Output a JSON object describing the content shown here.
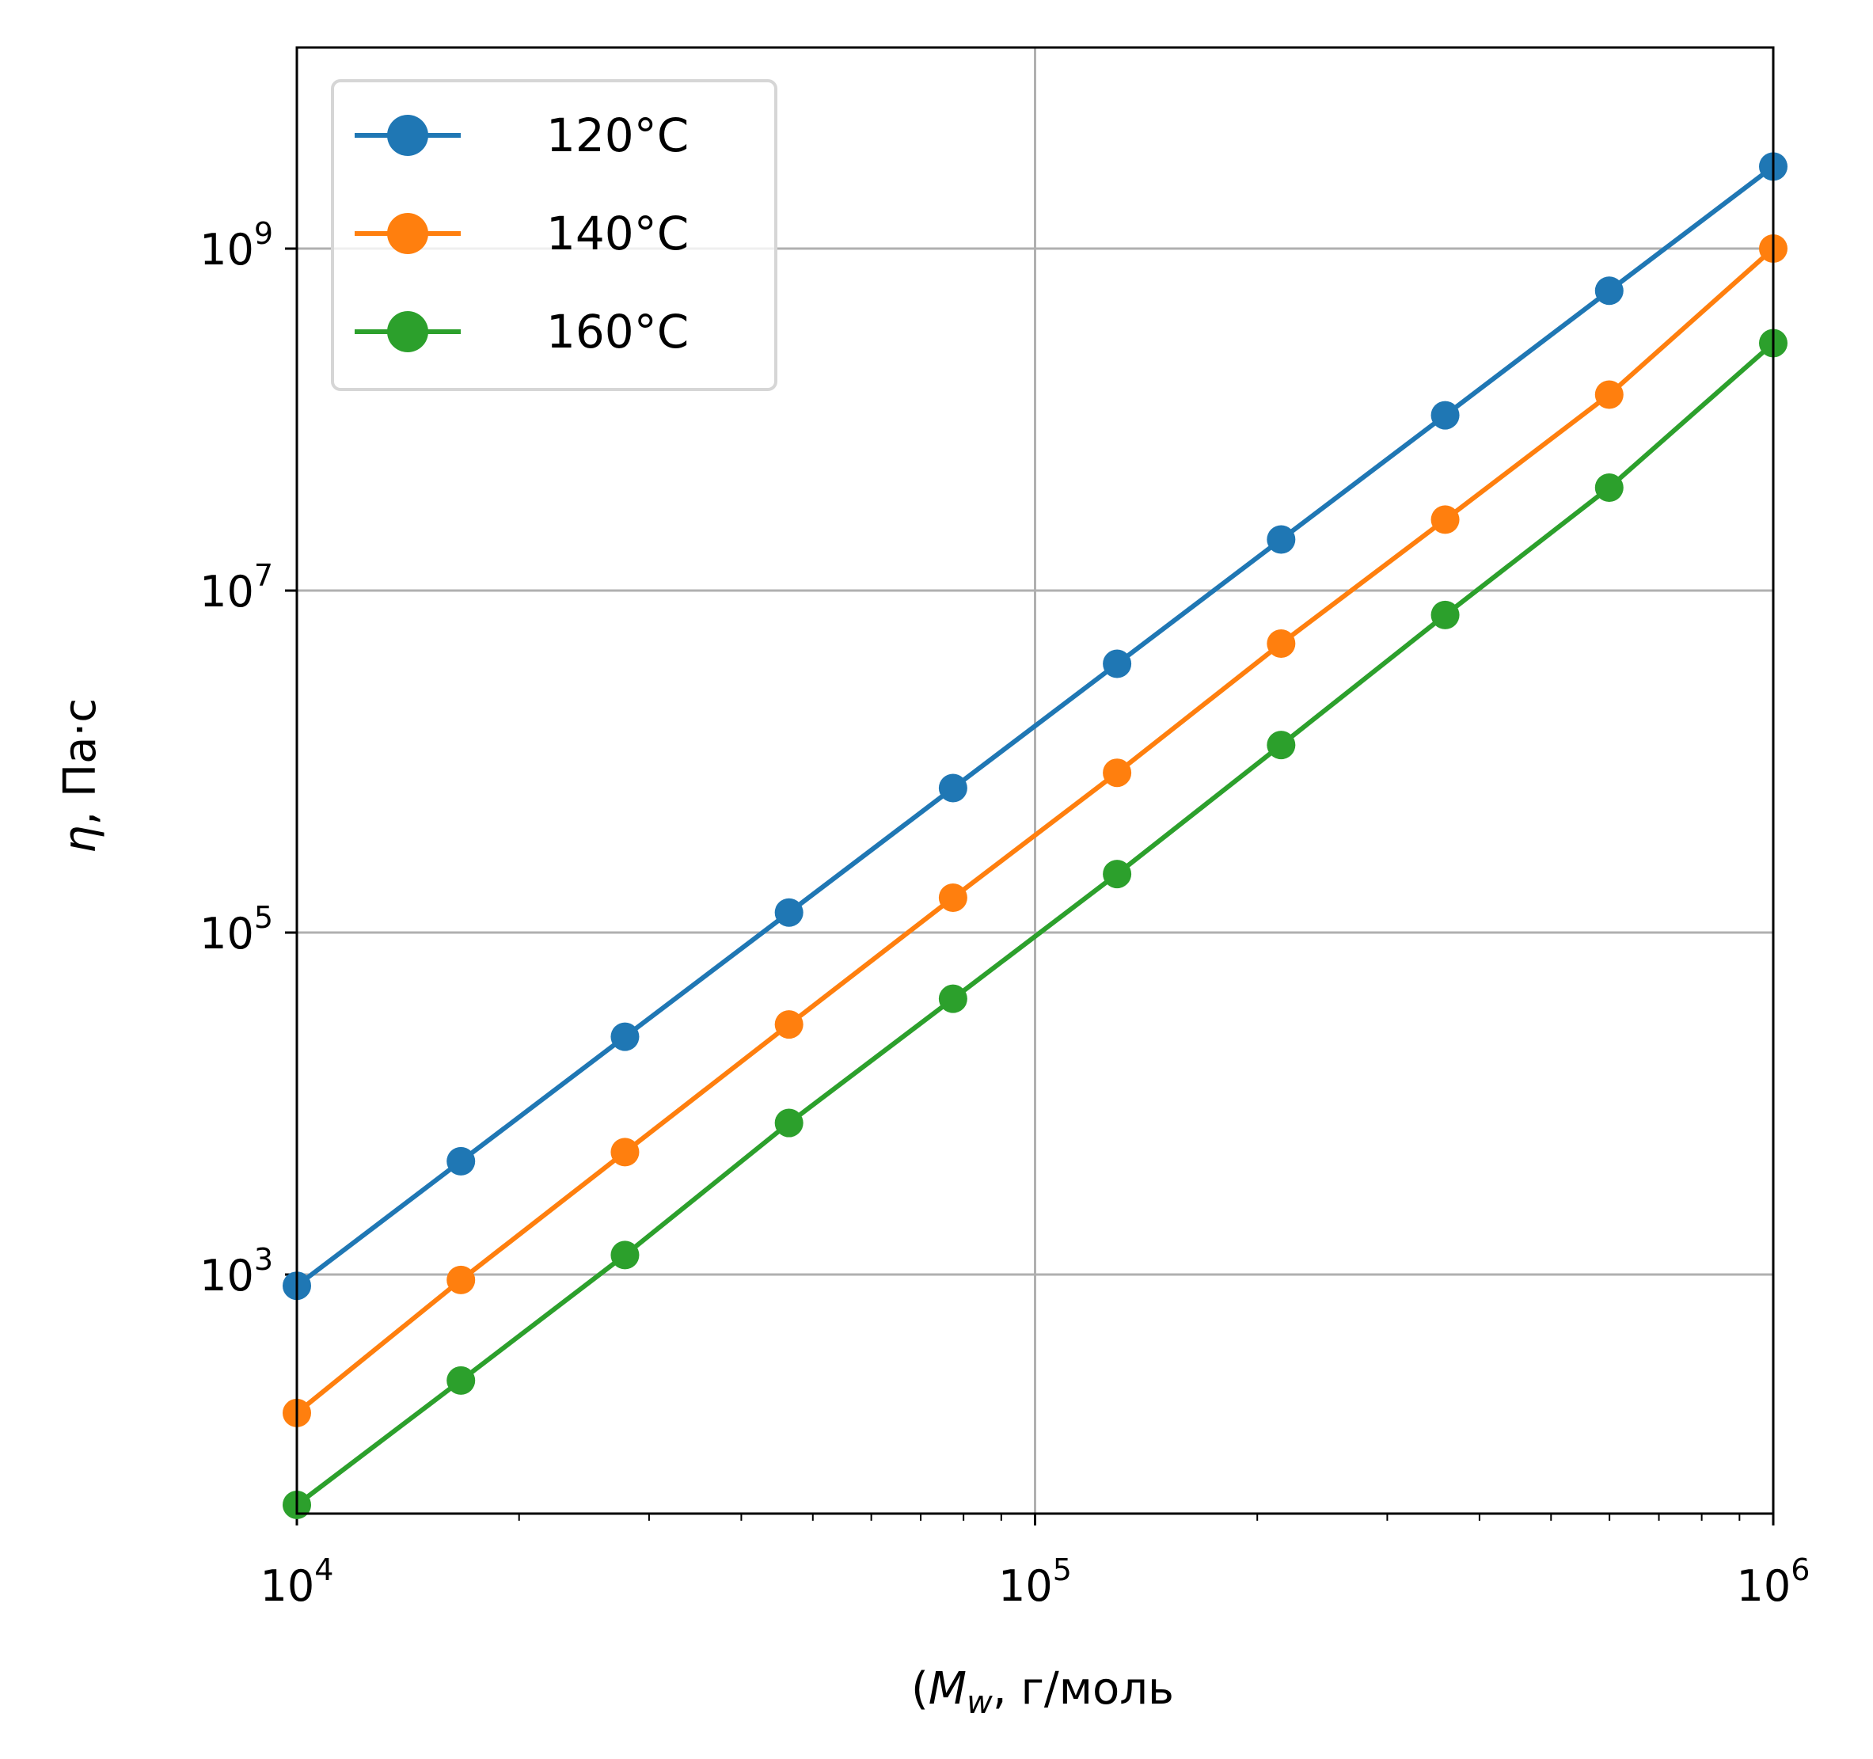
{
  "chart_data": {
    "type": "line",
    "title": "",
    "xlabel_prefix": "(",
    "xlabel_var": "M",
    "xlabel_sub": "w",
    "xlabel_suffix": ", г/моль",
    "ylabel_var": "η",
    "ylabel_suffix": ", Па·с",
    "x_scale": "log",
    "y_scale": "log",
    "xlim": [
      10000,
      1000000
    ],
    "ylim": [
      40,
      15000000000
    ],
    "grid": true,
    "legend_position": "upper left",
    "x_ticks": [
      {
        "base": "10",
        "exp": "4",
        "value": 10000
      },
      {
        "base": "10",
        "exp": "5",
        "value": 100000
      },
      {
        "base": "10",
        "exp": "6",
        "value": 1000000
      }
    ],
    "y_ticks": [
      {
        "base": "10",
        "exp": "3",
        "value": 1000
      },
      {
        "base": "10",
        "exp": "5",
        "value": 100000
      },
      {
        "base": "10",
        "exp": "7",
        "value": 10000000
      },
      {
        "base": "10",
        "exp": "9",
        "value": 1000000000
      }
    ],
    "x": [
      10000,
      16681,
      27826,
      46416,
      77426,
      129155,
      215443,
      359381,
      599484,
      1000000
    ],
    "series": [
      {
        "name": "120°C",
        "color": "#1f77b4",
        "values": [
          860,
          4600,
          24600,
          131000,
          700000,
          3730000,
          19900000,
          106000000,
          567000000,
          3020000000
        ]
      },
      {
        "name": "140°C",
        "color": "#ff7f0e",
        "values": [
          155,
          930,
          5200,
          29000,
          160000,
          860000,
          4900000,
          26000000,
          140000000,
          1000000000
        ]
      },
      {
        "name": "160°C",
        "color": "#2ca02c",
        "values": [
          45,
          240,
          1300,
          7700,
          41000,
          220000,
          1250000,
          7200000,
          40000000,
          280000000
        ]
      }
    ]
  }
}
